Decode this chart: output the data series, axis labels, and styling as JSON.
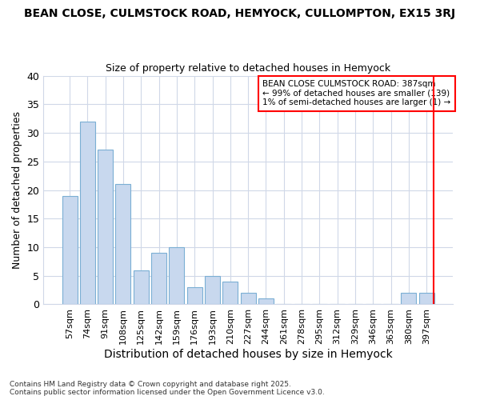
{
  "title1": "BEAN CLOSE, CULMSTOCK ROAD, HEMYOCK, CULLOMPTON, EX15 3RJ",
  "title2": "Size of property relative to detached houses in Hemyock",
  "xlabel": "Distribution of detached houses by size in Hemyock",
  "ylabel": "Number of detached properties",
  "bar_labels": [
    "57sqm",
    "74sqm",
    "91sqm",
    "108sqm",
    "125sqm",
    "142sqm",
    "159sqm",
    "176sqm",
    "193sqm",
    "210sqm",
    "227sqm",
    "244sqm",
    "261sqm",
    "278sqm",
    "295sqm",
    "312sqm",
    "329sqm",
    "346sqm",
    "363sqm",
    "380sqm",
    "397sqm"
  ],
  "bar_values": [
    19,
    32,
    27,
    21,
    6,
    9,
    10,
    3,
    5,
    4,
    2,
    1,
    0,
    0,
    0,
    0,
    0,
    0,
    0,
    2,
    2
  ],
  "bar_color": "#c8d8ee",
  "bar_edge_color": "#7bafd4",
  "ylim": [
    0,
    40
  ],
  "yticks": [
    0,
    5,
    10,
    15,
    20,
    25,
    30,
    35,
    40
  ],
  "annotation_title": "BEAN CLOSE CULMSTOCK ROAD: 387sqm",
  "annotation_line1": "← 99% of detached houses are smaller (139)",
  "annotation_line2": "1% of semi-detached houses are larger (1) →",
  "footnote1": "Contains HM Land Registry data © Crown copyright and database right 2025.",
  "footnote2": "Contains public sector information licensed under the Open Government Licence v3.0.",
  "background_color": "#ffffff",
  "grid_color": "#d0d8e8"
}
